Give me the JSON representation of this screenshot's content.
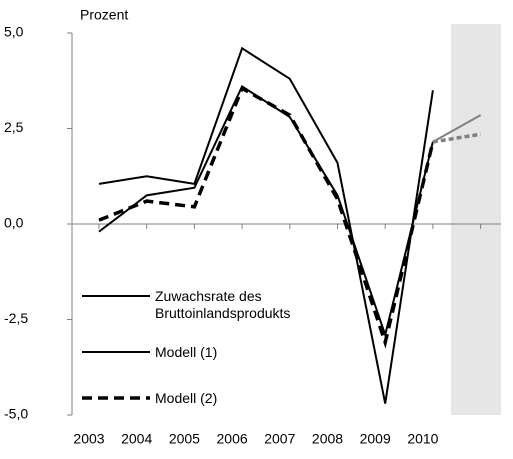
{
  "chart_data": {
    "type": "line",
    "y_label": "Prozent",
    "categories": [
      "2003",
      "2004",
      "2005",
      "2006",
      "2007",
      "2008",
      "2009",
      "2010",
      null
    ],
    "series": [
      {
        "name": "Zuwachsrate des Bruttoinlandsprodukts",
        "color": "#000000",
        "dash": false,
        "values": [
          1.05,
          1.25,
          1.05,
          4.6,
          3.8,
          1.6,
          -4.7,
          3.5,
          null
        ]
      },
      {
        "name": "Modell (1)",
        "color": "#000000",
        "dash": false,
        "values": [
          -0.2,
          0.75,
          0.95,
          3.6,
          2.8,
          0.75,
          -2.9,
          2.15,
          2.85
        ]
      },
      {
        "name": "Modell (2)",
        "color": "#000000",
        "dash": true,
        "values": [
          0.1,
          0.6,
          0.45,
          3.55,
          2.85,
          0.65,
          -3.1,
          2.15,
          2.35
        ]
      }
    ],
    "forecast_color": "#808080",
    "ylim": [
      -5,
      5
    ],
    "yticks": [
      {
        "value": -5,
        "label": "-5,0"
      },
      {
        "value": -2.5,
        "label": "-2,5"
      },
      {
        "value": 0,
        "label": "0,0"
      },
      {
        "value": 2.5,
        "label": "2,5"
      },
      {
        "value": 5,
        "label": "5,0"
      }
    ]
  }
}
